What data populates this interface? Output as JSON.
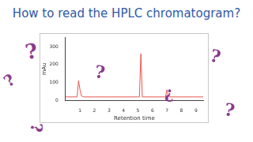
{
  "title": "How to read the HPLC chromatogram?",
  "marks": [
    "?",
    "?",
    "?",
    "?",
    "?",
    "?",
    "¿"
  ],
  "chart_data": {
    "type": "line",
    "x_label": "Retention time",
    "y_label": "mAu",
    "x": [
      0,
      0.5,
      0.8,
      0.9,
      1.0,
      1.1,
      1.3,
      2,
      3,
      4,
      5,
      5.1,
      5.2,
      5.3,
      5.4,
      6,
      6.8,
      6.9,
      7.0,
      7.1,
      7.2,
      8,
      9,
      9.5
    ],
    "values": [
      20,
      20,
      20,
      110,
      60,
      25,
      20,
      20,
      20,
      20,
      20,
      20,
      260,
      20,
      20,
      20,
      20,
      20,
      60,
      25,
      20,
      20,
      20,
      20
    ],
    "color": "#e8544e",
    "xlim": [
      0,
      9.5
    ],
    "xticks": [
      1,
      2,
      3,
      4,
      5,
      6,
      7,
      8,
      9
    ],
    "ylim": [
      0,
      350
    ],
    "yticks": [
      0,
      100,
      200,
      300
    ],
    "grid": false
  }
}
